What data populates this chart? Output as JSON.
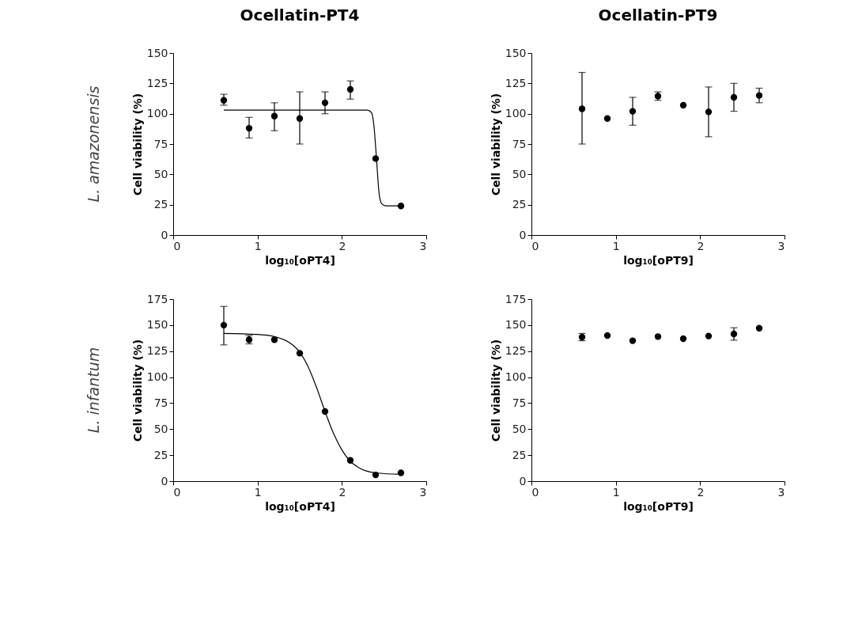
{
  "chart_data": [
    {
      "type": "scatter",
      "title": "Ocellatin-PT4",
      "annotations": [
        "L. amazonensis"
      ],
      "xlabel": "log₁₀[oPT4]",
      "ylabel": "Cell viability (%)",
      "x": [
        0.6,
        0.9,
        1.2,
        1.5,
        1.8,
        2.1,
        2.4,
        2.7
      ],
      "xlim": [
        0,
        3
      ],
      "xticks": [
        0,
        1,
        2,
        3
      ],
      "ylim": [
        0,
        150
      ],
      "yticks": [
        0,
        25,
        50,
        75,
        100,
        125,
        150
      ],
      "grid": false,
      "marker": "circle",
      "series": [
        {
          "type": "scatter",
          "color": "#000000",
          "values": [
            111,
            88,
            98,
            96,
            109,
            120,
            63,
            24
          ],
          "errors": [
            [
              107,
              116
            ],
            [
              80,
              97
            ],
            [
              86,
              109
            ],
            [
              75,
              118
            ],
            [
              100,
              118
            ],
            [
              112,
              127
            ],
            null,
            null
          ]
        },
        {
          "type": "line",
          "color": "#000000",
          "marker": "none",
          "x": [
            0.6,
            2.3,
            2.35,
            2.38,
            2.41,
            2.44,
            2.47,
            2.52,
            2.7
          ],
          "values": [
            103,
            103,
            101,
            90,
            63,
            35,
            26,
            24,
            24
          ]
        }
      ]
    },
    {
      "type": "scatter",
      "title": "Ocellatin-PT9",
      "xlabel": "log₁₀[oPT9]",
      "ylabel": "Cell viability (%)",
      "x": [
        0.6,
        0.9,
        1.2,
        1.5,
        1.8,
        2.1,
        2.4,
        2.7
      ],
      "xlim": [
        0,
        3
      ],
      "xticks": [
        0,
        1,
        2,
        3
      ],
      "ylim": [
        0,
        150
      ],
      "yticks": [
        0,
        25,
        50,
        75,
        100,
        125,
        150
      ],
      "grid": false,
      "marker": "circle",
      "series": [
        {
          "type": "scatter",
          "color": "#000000",
          "values": [
            104,
            96,
            102,
            114.5,
            107,
            101.5,
            113.5,
            115
          ],
          "errors": [
            [
              75,
              134
            ],
            null,
            [
              90.5,
              113.5
            ],
            [
              111,
              118
            ],
            null,
            [
              81,
              122
            ],
            [
              102,
              125
            ],
            [
              109,
              121
            ]
          ]
        }
      ]
    },
    {
      "type": "scatter",
      "annotations": [
        "L. infantum"
      ],
      "xlabel": "log₁₀[oPT4]",
      "ylabel": "Cell viability (%)",
      "x": [
        0.6,
        0.9,
        1.2,
        1.5,
        1.8,
        2.1,
        2.4,
        2.7
      ],
      "xlim": [
        0,
        3
      ],
      "xticks": [
        0,
        1,
        2,
        3
      ],
      "ylim": [
        0,
        175
      ],
      "yticks": [
        0,
        25,
        50,
        75,
        100,
        125,
        150,
        175
      ],
      "grid": false,
      "marker": "circle",
      "series": [
        {
          "type": "scatter",
          "color": "#000000",
          "values": [
            150,
            136,
            136,
            123,
            67,
            20,
            6,
            8
          ],
          "errors": [
            [
              131,
              168
            ],
            [
              132,
              140
            ],
            null,
            null,
            null,
            null,
            null,
            null
          ]
        },
        {
          "type": "line",
          "color": "#000000",
          "marker": "none",
          "x": [
            0.6,
            1.0,
            1.2,
            1.4,
            1.5,
            1.6,
            1.7,
            1.8,
            1.9,
            2.0,
            2.1,
            2.2,
            2.4,
            2.7
          ],
          "values": [
            142,
            141,
            139,
            132,
            124,
            110,
            90,
            67,
            46,
            30,
            19,
            13,
            8,
            6.5
          ]
        }
      ]
    },
    {
      "type": "scatter",
      "xlabel": "log₁₀[oPT9]",
      "ylabel": "Cell viability (%)",
      "x": [
        0.6,
        0.9,
        1.2,
        1.5,
        1.8,
        2.1,
        2.4,
        2.7
      ],
      "xlim": [
        0,
        3
      ],
      "xticks": [
        0,
        1,
        2,
        3
      ],
      "ylim": [
        0,
        175
      ],
      "yticks": [
        0,
        25,
        50,
        75,
        100,
        125,
        150,
        175
      ],
      "grid": false,
      "marker": "circle",
      "series": [
        {
          "type": "scatter",
          "color": "#000000",
          "values": [
            138.5,
            140,
            135,
            139,
            137,
            139.5,
            141.5,
            147
          ],
          "errors": [
            [
              135,
              142
            ],
            null,
            null,
            null,
            null,
            null,
            [
              135.5,
              147.5
            ],
            null
          ]
        }
      ]
    }
  ]
}
